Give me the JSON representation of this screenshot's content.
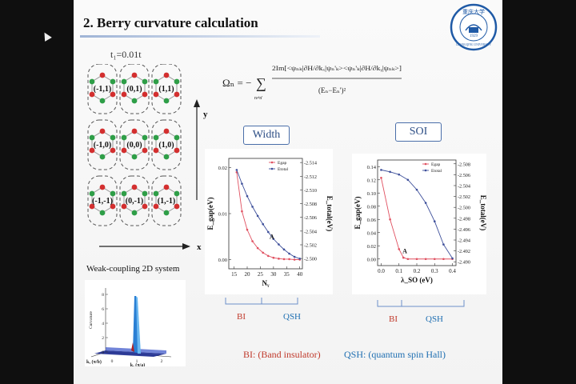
{
  "slide": {
    "title": "2. Berry curvature calculation",
    "t1_label": "t₁=0.01t",
    "weak_coupling_label": "Weak-coupling 2D system",
    "axis_y": "y",
    "axis_x": "x",
    "cells": [
      "(-1,1)",
      "(0,1)",
      "(1,1)",
      "(-1,0)",
      "(0,0)",
      "(1,0)",
      "(-1,-1)",
      "(0,-1)",
      "(1,-1)"
    ],
    "width_label": "Width",
    "soi_label": "SOI",
    "bi_label": "BI",
    "qsh_label": "QSH",
    "legend_bi": "BI: (Band insulator)",
    "legend_qsh": "QSH: (quantum spin Hall)",
    "logo_text_top": "重庆大学",
    "logo_year": "1929",
    "logo_text_bottom": "CHONGQING UNIVERSITY"
  },
  "formula": {
    "lhs": "Ωₙ = −",
    "sum": "∑",
    "sum_sub": "n≠n'",
    "numerator": "2Im[<ψₙₖ|∂H/∂kₓ|ψₙ'ₖ><ψₙ'ₖ|∂H/∂kᵧ|ψₙₖ>]",
    "denominator": "(Eₙ−Eₙ')²"
  },
  "chart_data": [
    {
      "type": "line",
      "xlabel": "Nᵧ",
      "ylabel": "E_gap(eV)",
      "y2label": "E_total(eV)",
      "x_ticks": [
        15,
        20,
        25,
        30,
        35,
        40
      ],
      "y_ticks": [
        0.0,
        0.01,
        0.02
      ],
      "y_tick_labels": [
        "0.00",
        "0.01",
        "0.02"
      ],
      "y2_ticks": [
        -2.5,
        -2.502,
        -2.504,
        -2.506,
        -2.508,
        -2.51,
        -2.512,
        -2.514
      ],
      "y2_tick_labels": [
        "-2.500",
        "-2.502",
        "-2.504",
        "-2.506",
        "-2.508",
        "-2.510",
        "-2.512",
        "-2.514"
      ],
      "xlim": [
        13,
        41
      ],
      "ylim": [
        -0.002,
        0.022
      ],
      "y2lim": [
        -2.5146,
        -2.4985
      ],
      "annotation": "A",
      "series": [
        {
          "name": "Egap",
          "color": "#e05060",
          "axis": "left",
          "x": [
            16,
            18,
            20,
            22,
            24,
            26,
            28,
            30,
            32,
            34,
            36,
            38,
            40
          ],
          "values": [
            0.019,
            0.0105,
            0.0065,
            0.004,
            0.0025,
            0.0015,
            0.0008,
            0.0004,
            0.0002,
            0.0001,
            0.0001,
            0.0,
            0.0
          ]
        },
        {
          "name": "Etotal",
          "color": "#3d4f9a",
          "axis": "left",
          "x": [
            16,
            18,
            20,
            22,
            24,
            26,
            28,
            30,
            32,
            34,
            36,
            38,
            40
          ],
          "values": [
            0.0195,
            0.0165,
            0.0138,
            0.0115,
            0.0095,
            0.0077,
            0.006,
            0.0045,
            0.0033,
            0.0022,
            0.0013,
            0.0006,
            0.0002
          ]
        }
      ]
    },
    {
      "type": "line",
      "xlabel": "λ_SO (eV)",
      "ylabel": "E_gap(eV)",
      "y2label": "E_total(eV)",
      "x_ticks": [
        0.0,
        0.1,
        0.2,
        0.3,
        0.4
      ],
      "x_tick_labels": [
        "0.0",
        "0.1",
        "0.2",
        "0.3",
        "0.4"
      ],
      "y_ticks": [
        0.0,
        0.02,
        0.04,
        0.06,
        0.08,
        0.1,
        0.12,
        0.14
      ],
      "y_tick_labels": [
        "0.00",
        "0.02",
        "0.04",
        "0.06",
        "0.08",
        "0.10",
        "0.12",
        "0.14"
      ],
      "y2_ticks": [
        -2.49,
        -2.492,
        -2.494,
        -2.496,
        -2.498,
        -2.5,
        -2.502,
        -2.504,
        -2.506,
        -2.508
      ],
      "y2_tick_labels": [
        "-2.490",
        "-2.492",
        "-2.494",
        "-2.496",
        "-2.498",
        "-2.500",
        "-2.502",
        "-2.504",
        "-2.506",
        "-2.508"
      ],
      "xlim": [
        -0.02,
        0.42
      ],
      "ylim": [
        -0.01,
        0.15
      ],
      "y2lim": [
        -2.5087,
        -2.4893
      ],
      "annotation": "A",
      "series": [
        {
          "name": "Egap",
          "color": "#e05060",
          "axis": "left",
          "x": [
            0.0,
            0.05,
            0.1,
            0.125,
            0.15,
            0.2,
            0.25,
            0.3,
            0.35,
            0.4
          ],
          "values": [
            0.123,
            0.06,
            0.015,
            0.002,
            0.0,
            0.0,
            0.0,
            0.0,
            0.0,
            0.0
          ]
        },
        {
          "name": "Etotal",
          "color": "#3d4f9a",
          "axis": "left",
          "x": [
            0.0,
            0.05,
            0.1,
            0.15,
            0.2,
            0.25,
            0.3,
            0.35,
            0.4
          ],
          "values": [
            0.135,
            0.132,
            0.128,
            0.12,
            0.105,
            0.085,
            0.057,
            0.022,
            0.001
          ]
        }
      ]
    },
    {
      "type": "area",
      "ylabel": "Curvature",
      "xlabel": "kₓ (π/a)",
      "zlabel": "kᵧ (π/b)",
      "x_ticks": [
        0,
        1,
        2
      ],
      "y_ticks": [
        0,
        2,
        4,
        6,
        8
      ],
      "note": "3D surface with a sharp spike near kₓ ≈ 0.9"
    }
  ]
}
